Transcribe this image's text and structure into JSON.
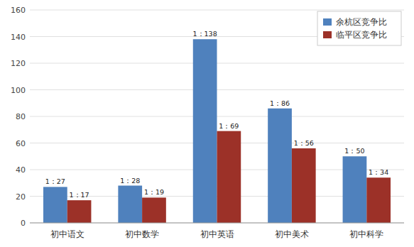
{
  "chart_data": {
    "type": "bar",
    "categories": [
      "初中语文",
      "初中数学",
      "初中英语",
      "初中美术",
      "初中科学"
    ],
    "series": [
      {
        "name": "余杭区竞争比",
        "color": "#4F81BD",
        "values": [
          27,
          28,
          138,
          86,
          50
        ],
        "value_labels": [
          "1：27",
          "1：28",
          "1：138",
          "1：86",
          "1：50"
        ]
      },
      {
        "name": "临平区竞争比",
        "color": "#9C3128",
        "values": [
          17,
          19,
          69,
          56,
          34
        ],
        "value_labels": [
          "1：17",
          "1：19",
          "1：69",
          "1：56",
          "1：34"
        ]
      }
    ],
    "ylim": [
      0,
      160
    ],
    "yticks": [
      0,
      20,
      40,
      60,
      80,
      100,
      120,
      140,
      160
    ],
    "grid": true,
    "legend": "upper right",
    "data_labels": true
  }
}
